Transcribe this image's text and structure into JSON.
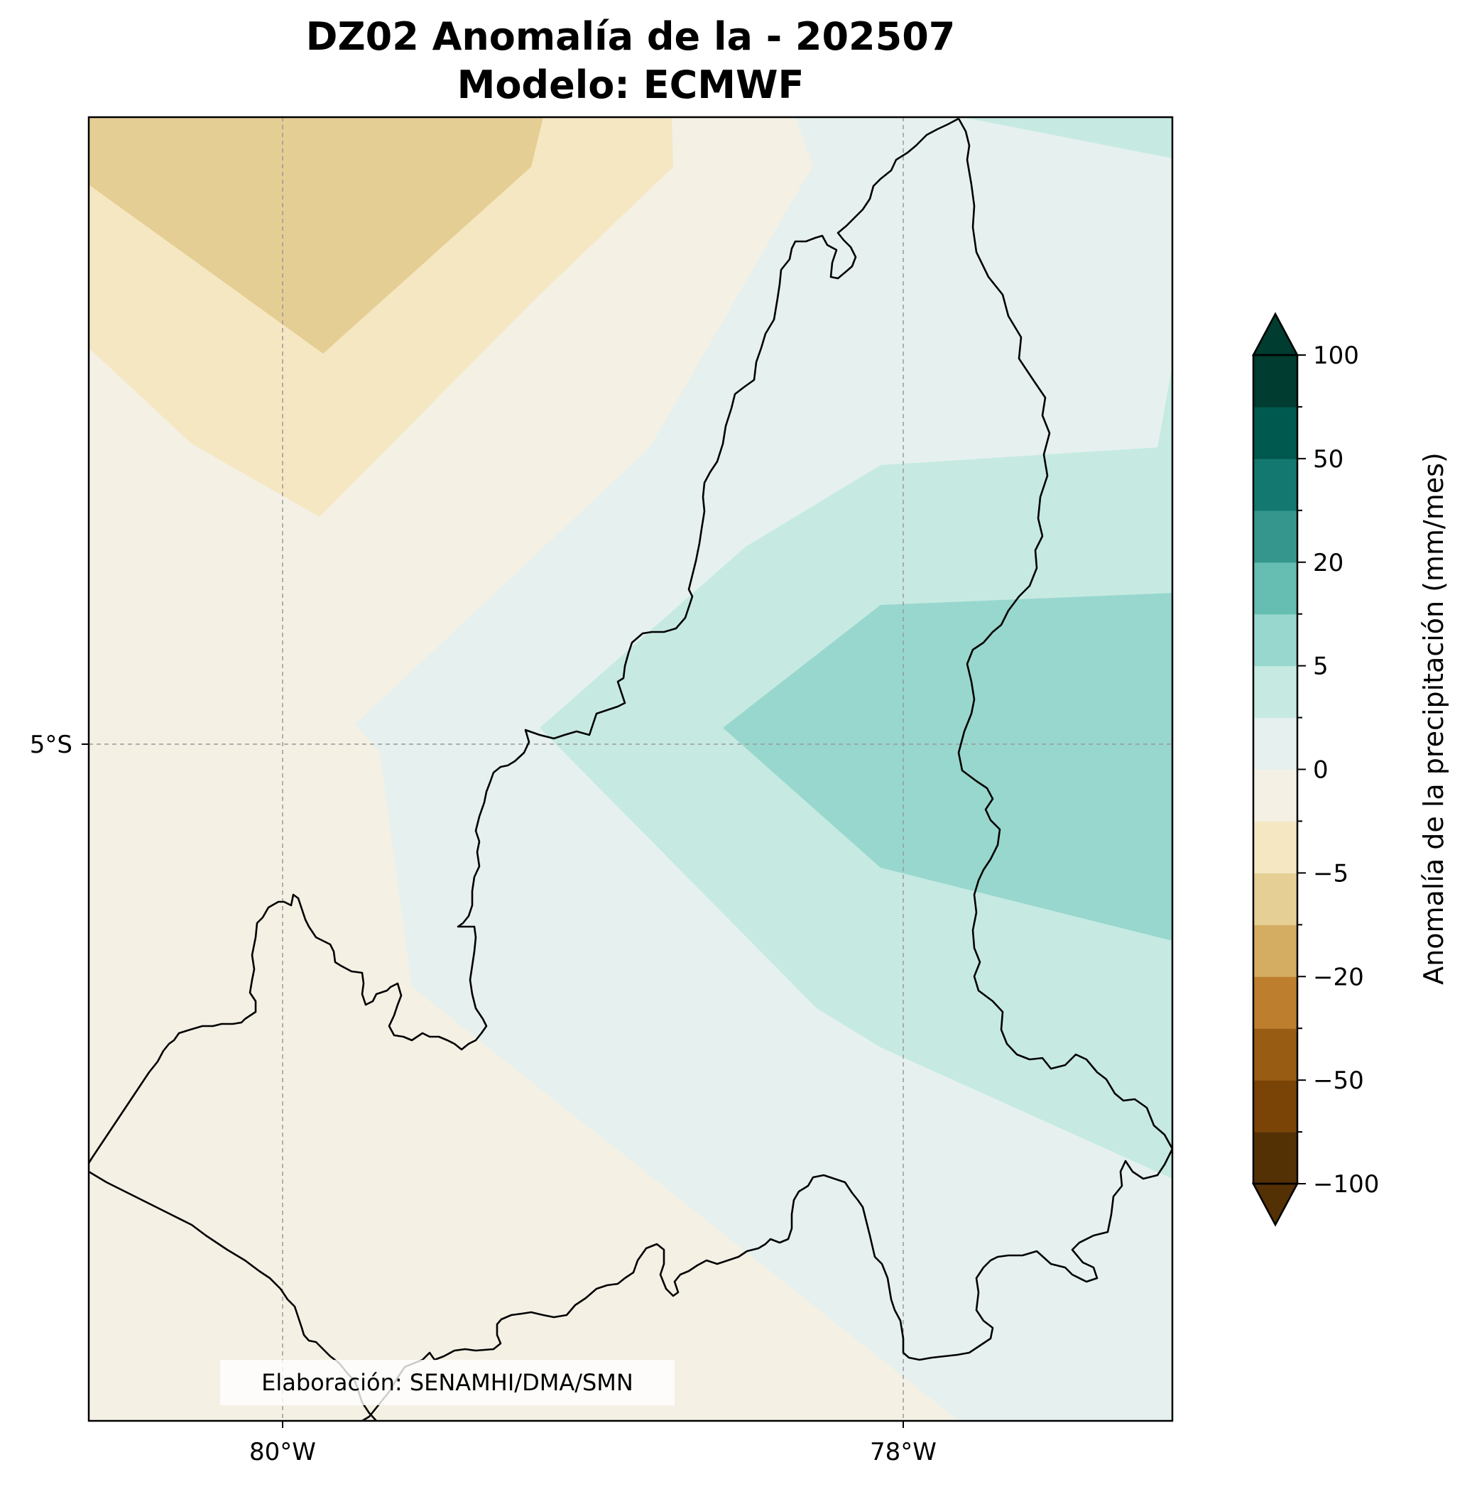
{
  "title": {
    "line1": "DZ02 Anomalía de la - 202507",
    "line2": "Modelo: ECMWF"
  },
  "axes": {
    "x_ticks": [
      "80°W",
      "78°W"
    ],
    "y_ticks": [
      "5°S"
    ]
  },
  "colorbar": {
    "label": "Anomalía de la precipitación (mm/mes)",
    "ticks": [
      "100",
      "50",
      "20",
      "5",
      "0",
      "−5",
      "−20",
      "−50",
      "−100"
    ],
    "colors": [
      "#543005",
      "#7a4407",
      "#985c12",
      "#bd7e2d",
      "#d4ac62",
      "#e6cf95",
      "#f5e7c2",
      "#f4f0e4",
      "#e6f1ef",
      "#c6eae2",
      "#98d7ce",
      "#66bdb1",
      "#35968d",
      "#137870",
      "#00594f",
      "#003c30"
    ]
  },
  "credit": "Elaboración: SENAMHI/DMA/SMN",
  "palette": {
    "brown_dark": "#e5ce93",
    "brown_mid": "#f5e7c2",
    "neutral_neg": "#f4f0e4",
    "neutral_pos": "#e6f1ef",
    "teal_light": "#c6eae2",
    "teal_mid": "#98d7ce"
  }
}
